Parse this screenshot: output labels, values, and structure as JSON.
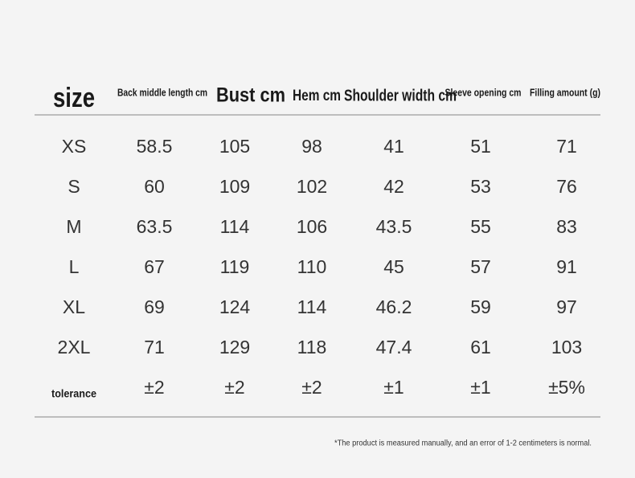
{
  "table": {
    "header": [
      "size",
      "Back middle length cm",
      "Bust cm",
      "Hem cm",
      "Shoulder width cm",
      "Sleeve opening cm",
      "Filling amount (g)"
    ],
    "rows": [
      [
        "XS",
        "58.5",
        "105",
        "98",
        "41",
        "51",
        "71"
      ],
      [
        "S",
        "60",
        "109",
        "102",
        "42",
        "53",
        "76"
      ],
      [
        "M",
        "63.5",
        "114",
        "106",
        "43.5",
        "55",
        "83"
      ],
      [
        "L",
        "67",
        "119",
        "110",
        "45",
        "57",
        "91"
      ],
      [
        "XL",
        "69",
        "124",
        "114",
        "46.2",
        "59",
        "97"
      ],
      [
        "2XL",
        "71",
        "129",
        "118",
        "47.4",
        "61",
        "103"
      ],
      [
        "tolerance",
        "±2",
        "±2",
        "±2",
        "±1",
        "±1",
        "±5%"
      ]
    ]
  },
  "footnote": "*The product is measured manually, and an error of 1-2 centimeters is normal."
}
